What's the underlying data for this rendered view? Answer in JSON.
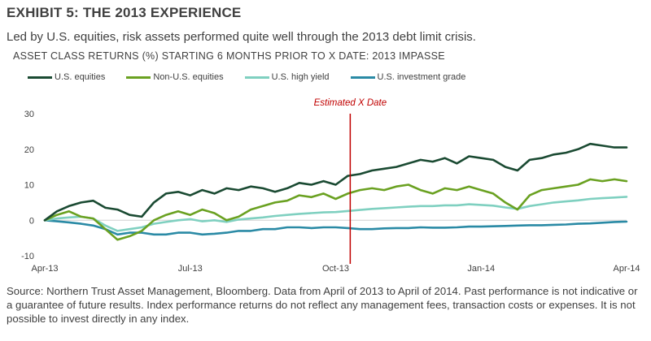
{
  "header": {
    "title": "EXHIBIT 5: THE 2013 EXPERIENCE",
    "subtitle": "Led by U.S. equities, risk assets performed quite well through the 2013 debt limit crisis."
  },
  "footer": {
    "source": "Source: Northern Trust Asset Management, Bloomberg. Data from April of 2013 to April of 2014. Past performance is not indicative or a guarantee of future results. Index performance returns do not reflect any management fees, transaction costs or expenses. It is not possible to invest directly in any index."
  },
  "chart_data": {
    "type": "line",
    "title": "ASSET CLASS RETURNS (%) STARTING 6 MONTHS PRIOR TO X DATE: 2013 IMPASSE",
    "xlabel": "",
    "ylabel": "",
    "x_ticks": [
      "Apr-13",
      "Jul-13",
      "Oct-13",
      "Jan-14",
      "Apr-14"
    ],
    "y_ticks": [
      -10,
      0,
      10,
      20,
      30
    ],
    "ylim": [
      -10,
      30
    ],
    "grid": false,
    "legend": "top",
    "annotation": {
      "label": "Estimated X Date",
      "x": 6.3,
      "color": "#c00000"
    },
    "x": [
      0,
      0.25,
      0.5,
      0.75,
      1,
      1.25,
      1.5,
      1.75,
      2,
      2.25,
      2.5,
      2.75,
      3,
      3.25,
      3.5,
      3.75,
      4,
      4.25,
      4.5,
      4.75,
      5,
      5.25,
      5.5,
      5.75,
      6,
      6.25,
      6.5,
      6.75,
      7,
      7.25,
      7.5,
      7.75,
      8,
      8.25,
      8.5,
      8.75,
      9,
      9.25,
      9.5,
      9.75,
      10,
      10.25,
      10.5,
      10.75,
      11,
      11.25,
      11.5,
      11.75,
      12
    ],
    "series": [
      {
        "name": "U.S. equities",
        "color": "#1a4a32",
        "values": [
          0,
          2.5,
          4,
          5,
          5.5,
          3.5,
          3,
          1.5,
          1,
          5,
          7.5,
          8,
          7,
          8.5,
          7.5,
          9,
          8.5,
          9.5,
          9,
          8,
          9,
          10.5,
          10,
          11,
          10,
          12.5,
          13,
          14,
          14.5,
          15,
          16,
          17,
          16.5,
          17.5,
          16,
          18,
          17.5,
          17,
          15,
          14,
          17,
          17.5,
          18.5,
          19,
          20,
          21.5,
          21,
          20.5,
          20.5
        ]
      },
      {
        "name": "Non-U.S. equities",
        "color": "#6aa121",
        "values": [
          0,
          1.5,
          2.5,
          1,
          0.5,
          -2.5,
          -5.5,
          -4.5,
          -3,
          0,
          1.5,
          2.5,
          1.5,
          3,
          2,
          0,
          1,
          3,
          4,
          5,
          5.5,
          7,
          6.5,
          7.5,
          6,
          7.5,
          8.5,
          9,
          8.5,
          9.5,
          10,
          8.5,
          7.5,
          9,
          8.5,
          9.5,
          8.5,
          7.5,
          5,
          3,
          7,
          8.5,
          9,
          9.5,
          10,
          11.5,
          11,
          11.5,
          11
        ]
      },
      {
        "name": "U.S. high yield",
        "color": "#7fd0c0",
        "values": [
          0,
          0.5,
          0.8,
          1,
          0.5,
          -1.5,
          -3,
          -2.5,
          -2,
          -1,
          -0.5,
          0,
          0.3,
          -0.3,
          0,
          -0.5,
          0.2,
          0.5,
          0.8,
          1.2,
          1.5,
          1.8,
          2,
          2.2,
          2.3,
          2.6,
          2.9,
          3.2,
          3.4,
          3.6,
          3.8,
          4,
          4,
          4.2,
          4.2,
          4.5,
          4.3,
          4.1,
          3.6,
          3.2,
          4,
          4.5,
          5,
          5.3,
          5.6,
          6,
          6.2,
          6.4,
          6.6
        ]
      },
      {
        "name": "U.S. investment grade",
        "color": "#2a8aa5",
        "values": [
          0,
          -0.3,
          -0.6,
          -1,
          -1.5,
          -2.5,
          -4,
          -3.5,
          -3.5,
          -4,
          -4,
          -3.5,
          -3.5,
          -4,
          -3.8,
          -3.5,
          -3,
          -3,
          -2.5,
          -2.5,
          -2,
          -2,
          -2.2,
          -2,
          -2,
          -2.2,
          -2.5,
          -2.5,
          -2.3,
          -2.2,
          -2.2,
          -2,
          -2.1,
          -2.1,
          -2,
          -1.8,
          -1.8,
          -1.7,
          -1.6,
          -1.5,
          -1.4,
          -1.4,
          -1.3,
          -1.2,
          -1,
          -0.9,
          -0.7,
          -0.5,
          -0.4
        ]
      }
    ]
  }
}
